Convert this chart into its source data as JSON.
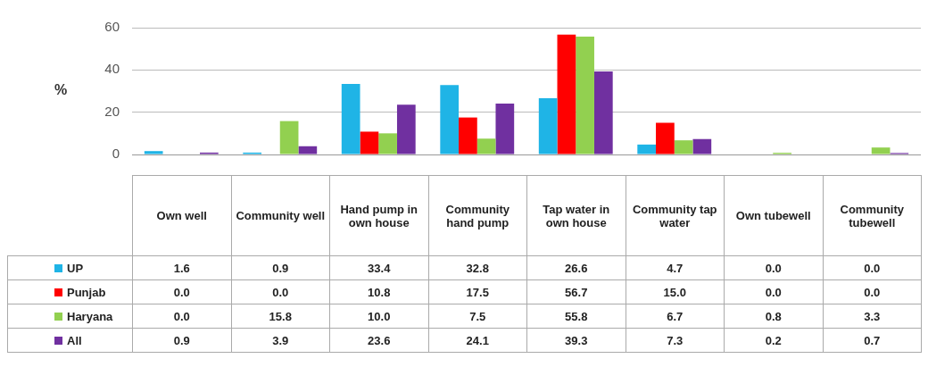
{
  "chart_data": {
    "type": "bar",
    "ylabel": "%",
    "categories": [
      "Own well",
      "Community well",
      "Hand pump in own house",
      "Community hand pump",
      "Tap water in own house",
      "Community tap water",
      "Own tubewell",
      "Community tubewell"
    ],
    "series": [
      {
        "name": "UP",
        "color": "#1fb4e6",
        "values": [
          1.6,
          0.9,
          33.4,
          32.8,
          26.6,
          4.7,
          0.0,
          0.0
        ],
        "value_labels": [
          "1.6",
          "0.9",
          "33.4",
          "32.8",
          "26.6",
          "4.7",
          "0.0",
          "0.0"
        ]
      },
      {
        "name": "Punjab",
        "color": "#ff0000",
        "values": [
          0.0,
          0.0,
          10.8,
          17.5,
          56.7,
          15.0,
          0.0,
          0.0
        ],
        "value_labels": [
          "0.0",
          "0.0",
          "10.8",
          "17.5",
          "56.7",
          "15.0",
          "0.0",
          "0.0"
        ]
      },
      {
        "name": "Haryana",
        "color": "#92d050",
        "values": [
          0.0,
          15.8,
          10.0,
          7.5,
          55.8,
          6.7,
          0.8,
          3.3
        ],
        "value_labels": [
          "0.0",
          "15.8",
          "10.0",
          "7.5",
          "55.8",
          "6.7",
          "0.8",
          "3.3"
        ]
      },
      {
        "name": "All",
        "color": "#7030a0",
        "values": [
          0.9,
          3.9,
          23.6,
          24.1,
          39.3,
          7.3,
          0.2,
          0.7
        ],
        "value_labels": [
          "0.9",
          "3.9",
          "23.6",
          "24.1",
          "39.3",
          "7.3",
          "0.2",
          "0.7"
        ]
      }
    ],
    "ylim": [
      0,
      60
    ],
    "yticks": [
      0,
      20,
      40,
      60
    ],
    "grid": "y",
    "legend": "bottom left"
  }
}
